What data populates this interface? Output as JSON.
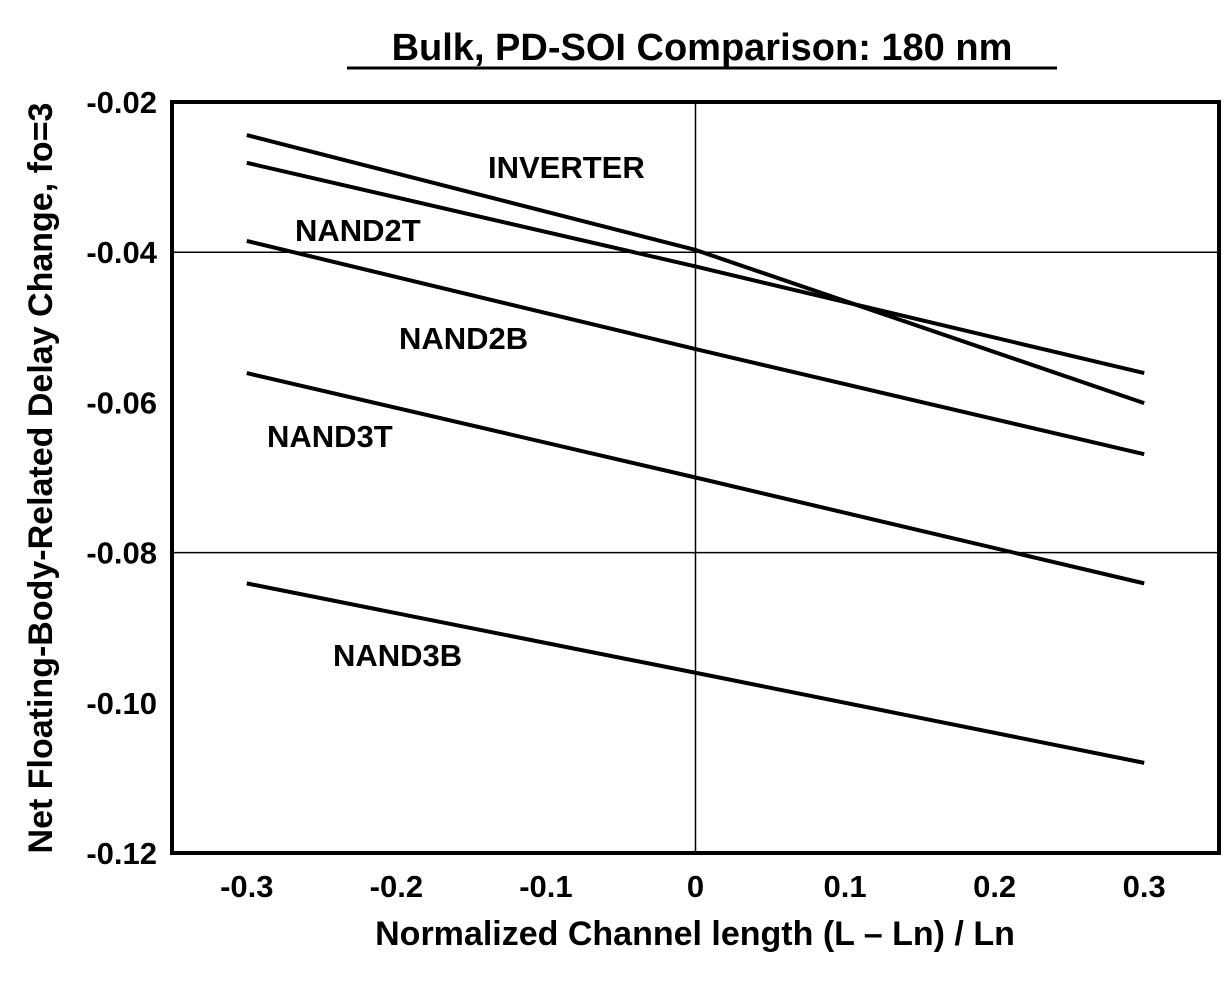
{
  "chart_data": {
    "type": "line",
    "title": "Bulk, PD-SOI Comparison: 180 nm",
    "xlabel": "Normalized Channel length (L – Ln) / Ln",
    "ylabel": "Net Floating-Body-Related Delay Change, fo=3",
    "xlim": [
      -0.35,
      0.35
    ],
    "ylim": [
      -0.12,
      -0.02
    ],
    "xticks": [
      -0.3,
      -0.2,
      -0.1,
      0,
      0.1,
      0.2,
      0.3
    ],
    "xtick_labels": [
      "-0.3",
      "-0.2",
      "-0.1",
      "0",
      "0.1",
      "0.2",
      "0.3"
    ],
    "yticks": [
      -0.02,
      -0.04,
      -0.06,
      -0.08,
      -0.1,
      -0.12
    ],
    "ytick_labels": [
      "-0.02",
      "-0.04",
      "-0.06",
      "-0.08",
      "-0.10",
      "-0.12"
    ],
    "grid": {
      "horizontal": [
        -0.04,
        -0.08
      ],
      "vertical": [
        0
      ]
    },
    "line_color": "#000000",
    "series": [
      {
        "name": "INVERTER",
        "x": [
          -0.3,
          0,
          0.3
        ],
        "y": [
          -0.0244,
          -0.0397,
          -0.0601
        ]
      },
      {
        "name": "NAND2T",
        "x": [
          -0.3,
          0,
          0.3
        ],
        "y": [
          -0.0281,
          -0.0419,
          -0.0561
        ]
      },
      {
        "name": "NAND2B",
        "x": [
          -0.3,
          0,
          0.3
        ],
        "y": [
          -0.0385,
          -0.0529,
          -0.0669
        ]
      },
      {
        "name": "NAND3T",
        "x": [
          -0.3,
          0,
          0.3
        ],
        "y": [
          -0.0561,
          -0.07,
          -0.0841
        ]
      },
      {
        "name": "NAND3B",
        "x": [
          -0.3,
          0,
          0.3
        ],
        "y": [
          -0.0841,
          -0.096,
          -0.108
        ]
      }
    ]
  }
}
